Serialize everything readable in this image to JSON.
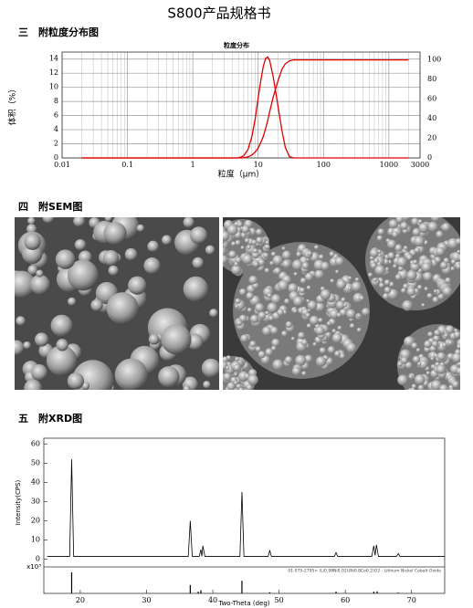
{
  "header": {
    "title": "S800产品规格书"
  },
  "sections": [
    {
      "heading": "三　附粒度分布图"
    },
    {
      "heading": "四　附SEM图"
    },
    {
      "heading": "五　附XRD图"
    }
  ],
  "chart_data": [
    {
      "type": "line",
      "title": "粒度分布",
      "x_label": "粒度（μm）",
      "y_label": "体积（%）",
      "x_scale": "log",
      "grid": true,
      "minor_grid": true,
      "x": [
        0.02,
        1,
        5,
        6,
        7,
        8,
        9,
        10,
        11,
        12,
        13,
        14,
        15,
        17,
        20,
        23,
        26,
        30,
        35,
        50,
        100,
        500,
        2000
      ],
      "series": [
        {
          "color": "#e00000",
          "values": [
            0,
            0,
            0,
            0.3,
            1.2,
            3.0,
            5.5,
            8.5,
            11,
            13,
            14.1,
            14.3,
            13.8,
            11.5,
            7.5,
            4.0,
            1.5,
            0.2,
            0,
            0,
            0,
            0,
            0
          ]
        },
        {
          "color": "#e00000",
          "axis": "y2",
          "values": [
            0,
            0,
            0,
            0.2,
            1,
            3,
            6,
            10,
            16,
            22,
            30,
            38,
            47,
            62,
            78,
            90,
            96,
            99,
            100,
            100,
            100,
            100,
            100
          ]
        }
      ],
      "xlim": [
        0.01,
        3000
      ],
      "xticks": [
        0.01,
        0.1,
        1,
        10,
        100,
        1000,
        3000
      ],
      "ylim": [
        0,
        15
      ],
      "yticks": [
        0,
        2,
        4,
        6,
        8,
        10,
        12,
        14
      ],
      "y2lim": [
        0,
        108
      ],
      "y2ticks": [
        0,
        20,
        40,
        60,
        80,
        100
      ]
    },
    {
      "type": "line",
      "x_label": "Two-Theta (deg)",
      "y_label": "Intensity(CPS)",
      "y_scale_label": "x10³",
      "grid": false,
      "x": [
        15,
        18.4,
        18.7,
        19.0,
        36.3,
        36.6,
        36.9,
        37.95,
        38.2,
        38.35,
        38.5,
        38.8,
        44.1,
        44.4,
        44.7,
        48.35,
        48.6,
        48.85,
        58.35,
        58.6,
        58.85,
        64.0,
        64.3,
        64.5,
        64.7,
        65.0,
        67.75,
        68.0,
        68.25,
        75
      ],
      "series": [
        {
          "color": "#000000",
          "values": [
            1.5,
            1.5,
            52,
            1.5,
            1.5,
            20,
            1.5,
            1.5,
            5,
            1.5,
            7,
            1.5,
            1.5,
            35,
            1.5,
            1.5,
            4.5,
            1.5,
            1.5,
            3.5,
            1.5,
            1.5,
            7,
            2,
            7.5,
            1.5,
            1.5,
            3,
            1.5,
            1.5
          ]
        }
      ],
      "reference": {
        "caption": "01-075-2795> (Li0.98Ni0.02)(Ni0.8Co0.2)O2 - Lithium Nickel Cobalt Oxide",
        "x": [
          18.7,
          36.6,
          37.8,
          38.2,
          44.4,
          48.6,
          58.6,
          64.3,
          64.8,
          68.0
        ],
        "values": [
          100,
          40,
          8,
          15,
          60,
          5,
          8,
          8,
          10,
          4
        ]
      },
      "xlim": [
        14.5,
        75
      ],
      "xticks": [
        20,
        30,
        40,
        50,
        60,
        70
      ],
      "ylim": [
        -4,
        63
      ],
      "yticks": [
        0,
        10,
        20,
        30,
        40,
        50,
        60
      ]
    }
  ]
}
